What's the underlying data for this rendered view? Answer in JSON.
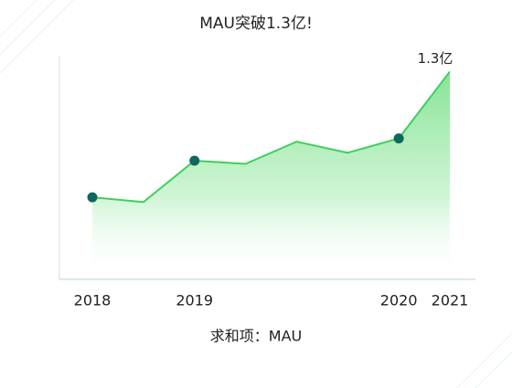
{
  "chart_data": {
    "type": "area",
    "title": "MAU突破1.3亿!",
    "x_label": "求和项：MAU",
    "categories": [
      "2018",
      null,
      "2019",
      null,
      null,
      null,
      "2020",
      "2021"
    ],
    "values": [
      0.51,
      0.48,
      0.74,
      0.72,
      0.86,
      0.79,
      0.88,
      1.3
    ],
    "value_labels": [
      null,
      null,
      null,
      null,
      null,
      null,
      null,
      "1.3亿"
    ],
    "color": "#3ecf5c",
    "marker_color": "#11675d",
    "ylim": [
      0,
      1.4
    ]
  }
}
